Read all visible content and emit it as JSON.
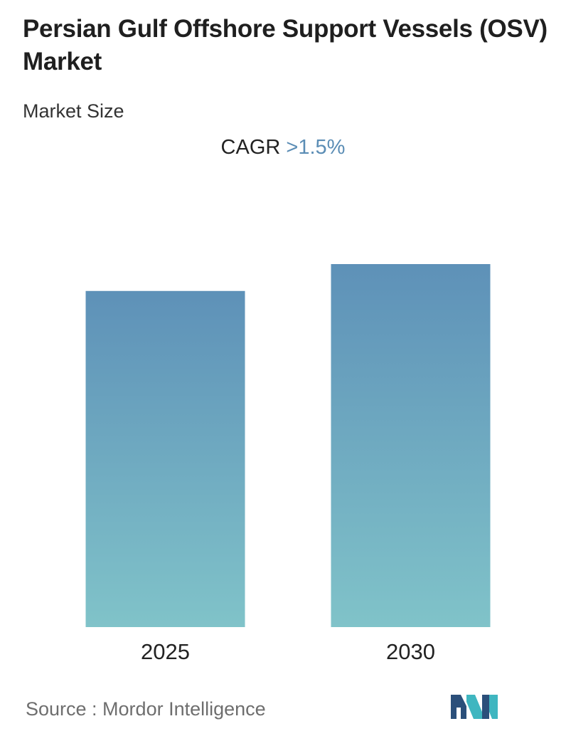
{
  "header": {
    "title": "Persian Gulf Offshore Support Vessels (OSV) Market",
    "subtitle": "Market Size",
    "cagr_label": "CAGR",
    "cagr_value": ">1.5%"
  },
  "footer": {
    "source": "Source :  Mordor Intelligence",
    "logo_icon": "mordor-intelligence-logo-icon"
  },
  "colors": {
    "bar_top": "#5e91b8",
    "bar_bottom": "#80c3c9",
    "cagr_accent": "#5b8db5",
    "logo_dark": "#2b4f7a",
    "logo_teal": "#3fb6c0"
  },
  "chart_data": {
    "type": "bar",
    "categories": [
      "2025",
      "2030"
    ],
    "values": [
      1.0,
      1.08
    ],
    "title": "Persian Gulf Offshore Support Vessels (OSV) Market",
    "xlabel": "",
    "ylabel": "",
    "ylim": [
      0,
      1.08
    ],
    "grid": false,
    "legend": "none"
  }
}
